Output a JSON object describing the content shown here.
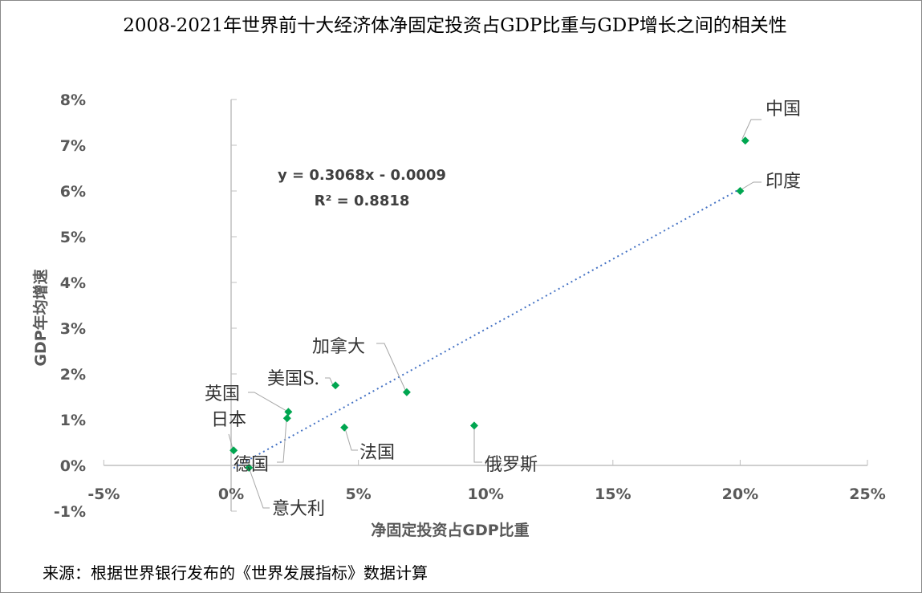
{
  "chart_data": {
    "type": "scatter",
    "title": "2008-2021年世界前十大经济体净固定投资占GDP比重与GDP增长之间的相关性",
    "xlabel": "净固定投资占GDP比重",
    "ylabel": "GDP年均增速",
    "xlim": [
      -5,
      25
    ],
    "ylim": [
      -1,
      8
    ],
    "xticks": [
      "-5%",
      "0%",
      "5%",
      "10%",
      "15%",
      "20%",
      "25%"
    ],
    "yticks": [
      "-1%",
      "0%",
      "1%",
      "2%",
      "3%",
      "4%",
      "5%",
      "6%",
      "7%",
      "8%"
    ],
    "points": [
      {
        "name": "中国",
        "x": 20.2,
        "y": 7.1
      },
      {
        "name": "印度",
        "x": 20.0,
        "y": 6.0
      },
      {
        "name": "加拿大",
        "x": 6.9,
        "y": 1.6
      },
      {
        "name": "美国S.",
        "x": 4.1,
        "y": 1.75
      },
      {
        "name": "英国",
        "x": 2.25,
        "y": 1.17
      },
      {
        "name": "德国",
        "x": 2.2,
        "y": 1.03
      },
      {
        "name": "法国",
        "x": 4.45,
        "y": 0.83
      },
      {
        "name": "俄罗斯",
        "x": 9.55,
        "y": 0.87
      },
      {
        "name": "日本",
        "x": 0.1,
        "y": 0.33
      },
      {
        "name": "意大利",
        "x": 0.7,
        "y": -0.05
      }
    ],
    "trendline": {
      "slope": 0.3068,
      "intercept": -0.0009,
      "equation": "y = 0.3068x - 0.0009",
      "r2": "R² = 0.8818",
      "color": "#4472c4"
    },
    "marker_color": "#00a650"
  },
  "source": "来源：根据世界银行发布的《世界发展指标》数据计算"
}
